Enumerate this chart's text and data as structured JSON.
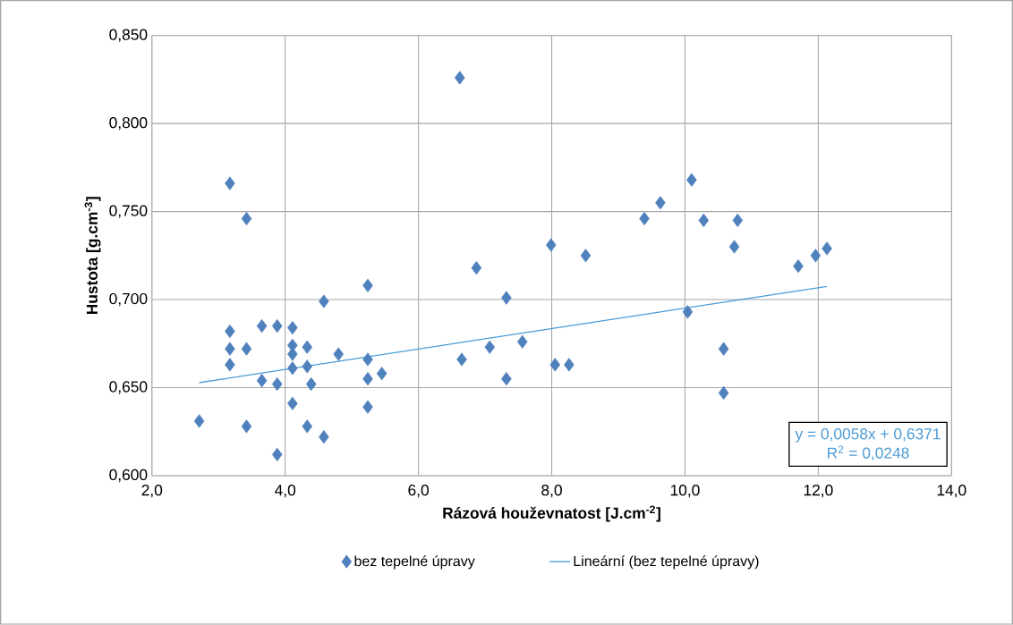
{
  "chart_data": {
    "type": "scatter",
    "xlabel": "Rázová houževnatost  [J.cm$^{-2}$]",
    "ylabel": "Hustota [g.cm$^{-3}$]",
    "xlim": [
      2.0,
      14.0
    ],
    "ylim": [
      0.6,
      0.85
    ],
    "xticks": [
      {
        "value": 2,
        "label": "2,0"
      },
      {
        "value": 4,
        "label": "4,0"
      },
      {
        "value": 6,
        "label": "6,0"
      },
      {
        "value": 8,
        "label": "8,0"
      },
      {
        "value": 10,
        "label": "10,0"
      },
      {
        "value": 12,
        "label": "12,0"
      },
      {
        "value": 14,
        "label": "14,0"
      }
    ],
    "yticks": [
      {
        "value": 0.6,
        "label": "0,600"
      },
      {
        "value": 0.65,
        "label": "0,650"
      },
      {
        "value": 0.7,
        "label": "0,700"
      },
      {
        "value": 0.75,
        "label": "0,750"
      },
      {
        "value": 0.8,
        "label": "0,800"
      },
      {
        "value": 0.85,
        "label": "0,850"
      }
    ],
    "grid": true,
    "legend": "bottom",
    "marker": "diamond",
    "annotations": [
      "y = 0,0058x + 0,6371",
      "R$^{2}$ = 0,0248"
    ],
    "series": [
      {
        "name": "bez tepelné úpravy",
        "color": "#4f81bd",
        "x": [
          2.71,
          3.17,
          3.42,
          3.17,
          3.17,
          3.17,
          3.42,
          3.42,
          3.65,
          3.65,
          3.88,
          3.88,
          3.88,
          4.11,
          4.11,
          4.11,
          4.11,
          4.11,
          4.33,
          4.33,
          4.33,
          4.39,
          4.58,
          4.58,
          4.8,
          5.24,
          5.24,
          5.24,
          5.24,
          5.45,
          6.62,
          6.65,
          6.87,
          7.07,
          7.32,
          7.32,
          7.56,
          7.99,
          8.05,
          8.26,
          8.51,
          9.39,
          9.63,
          10.04,
          10.1,
          10.28,
          10.58,
          10.58,
          10.74,
          10.79,
          11.7,
          11.96,
          12.13
        ],
        "values": [
          0.631,
          0.766,
          0.746,
          0.682,
          0.672,
          0.663,
          0.672,
          0.628,
          0.685,
          0.654,
          0.685,
          0.652,
          0.612,
          0.684,
          0.674,
          0.669,
          0.661,
          0.641,
          0.673,
          0.662,
          0.628,
          0.652,
          0.699,
          0.622,
          0.669,
          0.708,
          0.666,
          0.655,
          0.639,
          0.658,
          0.826,
          0.666,
          0.718,
          0.673,
          0.701,
          0.655,
          0.676,
          0.731,
          0.663,
          0.663,
          0.725,
          0.746,
          0.755,
          0.693,
          0.768,
          0.745,
          0.672,
          0.647,
          0.73,
          0.745,
          0.719,
          0.725,
          0.729
        ]
      },
      {
        "name": "Lineární (bez tepelné úpravy)",
        "type": "line",
        "color": "#4a9bd6",
        "line_style": "solid",
        "marker": "none",
        "x": [
          2.71,
          12.13
        ],
        "values": [
          0.6528,
          0.7075
        ]
      }
    ]
  }
}
